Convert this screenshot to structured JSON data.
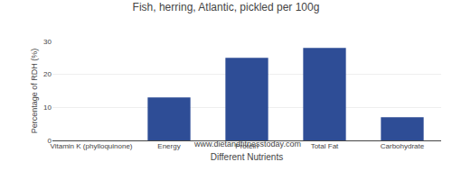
{
  "chart_data": {
    "type": "bar",
    "title": "Fish, herring, Atlantic, pickled per 100g",
    "subtitle": "www.dietandfitnesstoday.com",
    "xlabel": "Different Nutrients",
    "ylabel": "Percentage of RDH (%)",
    "categories": [
      "Vitamin K (phylloquinone)",
      "Energy",
      "Protein",
      "Total Fat",
      "Carbohydrate"
    ],
    "values": [
      0,
      13,
      25,
      28,
      7
    ],
    "color": "#2e4d96",
    "ylim": [
      0,
      30
    ],
    "yticks": [
      0,
      10,
      20,
      30
    ],
    "grid": true
  }
}
